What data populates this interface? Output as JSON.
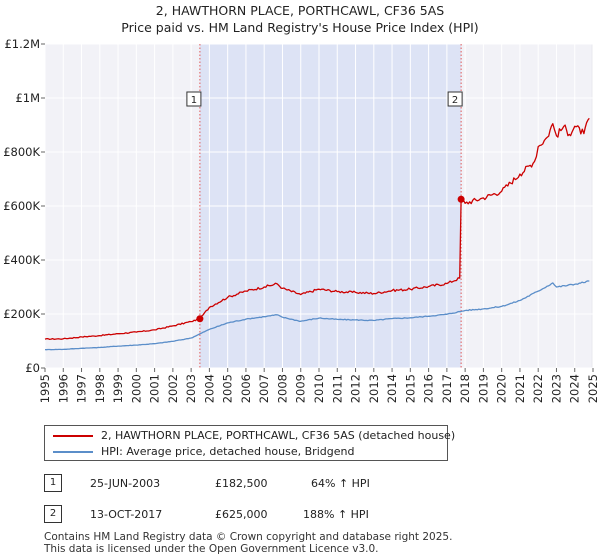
{
  "chart_data": {
    "type": "line",
    "title": "2, HAWTHORN PLACE, PORTHCAWL, CF36 5AS",
    "subtitle": "Price paid vs. HM Land Registry's House Price Index (HPI)",
    "xlabel": "",
    "ylabel": "",
    "xlim": [
      1995,
      2025
    ],
    "ylim": [
      0,
      1200000
    ],
    "y_ticks": [
      {
        "value": 0,
        "label": "£0"
      },
      {
        "value": 200000,
        "label": "£200K"
      },
      {
        "value": 400000,
        "label": "£400K"
      },
      {
        "value": 600000,
        "label": "£600K"
      },
      {
        "value": 800000,
        "label": "£800K"
      },
      {
        "value": 1000000,
        "label": "£1M"
      },
      {
        "value": 1200000,
        "label": "£1.2M"
      }
    ],
    "x_ticks": [
      "1995",
      "1996",
      "1997",
      "1998",
      "1999",
      "2000",
      "2001",
      "2002",
      "2003",
      "2004",
      "2005",
      "2006",
      "2007",
      "2008",
      "2009",
      "2010",
      "2011",
      "2012",
      "2013",
      "2014",
      "2015",
      "2016",
      "2017",
      "2018",
      "2019",
      "2020",
      "2021",
      "2022",
      "2023",
      "2024",
      "2025"
    ],
    "grid": true,
    "shaded_region": {
      "from": 2003.48,
      "to": 2017.78
    },
    "series": [
      {
        "name": "2, HAWTHORN PLACE, PORTHCAWL, CF36 5AS (detached house)",
        "color": "#cc0000",
        "x": [
          1995,
          1996,
          1997,
          1998,
          1999,
          2000,
          2001,
          2002,
          2003,
          2003.48,
          2004,
          2005,
          2006,
          2007,
          2007.7,
          2008,
          2009,
          2010,
          2011,
          2012,
          2013,
          2014,
          2015,
          2016,
          2017,
          2017.7,
          2017.78,
          2018,
          2019,
          2020,
          2021,
          2021.8,
          2022,
          2022.5,
          2022.8,
          2023,
          2023.4,
          2023.7,
          2024,
          2024.5,
          2024.8
        ],
        "values": [
          107000,
          108000,
          115000,
          120000,
          127000,
          133000,
          141000,
          156000,
          172000,
          182500,
          225000,
          262000,
          285000,
          300000,
          312000,
          295000,
          272000,
          292000,
          283000,
          280000,
          276000,
          287000,
          292000,
          302000,
          313000,
          333000,
          625000,
          610000,
          630000,
          655000,
          718000,
          765000,
          820000,
          855000,
          905000,
          860000,
          895000,
          865000,
          895000,
          868000,
          925000
        ]
      },
      {
        "name": "HPI: Average price, detached house, Bridgend",
        "color": "#5b8ec9",
        "x": [
          1995,
          1996,
          1997,
          1998,
          1999,
          2000,
          2001,
          2002,
          2003,
          2004,
          2005,
          2006,
          2007,
          2007.7,
          2008,
          2009,
          2010,
          2011,
          2012,
          2013,
          2014,
          2015,
          2016,
          2017,
          2018,
          2019,
          2020,
          2021,
          2022,
          2022.8,
          2023,
          2024,
          2024.8
        ],
        "values": [
          68000,
          69000,
          73000,
          76000,
          81000,
          85000,
          90000,
          99000,
          111000,
          143000,
          167000,
          181000,
          190000,
          197000,
          188000,
          173000,
          185000,
          180000,
          178000,
          176000,
          183000,
          186000,
          192000,
          199000,
          213000,
          219000,
          228000,
          250000,
          285000,
          315000,
          300000,
          310000,
          322000
        ]
      }
    ],
    "annotations": [
      {
        "label": "1",
        "x": 2003.48,
        "value": 182500
      },
      {
        "label": "2",
        "x": 2017.78,
        "value": 625000
      }
    ]
  },
  "sales": [
    {
      "num": "1",
      "date": "25-JUN-2003",
      "price": "£182,500",
      "hpi": "64% ↑ HPI"
    },
    {
      "num": "2",
      "date": "13-OCT-2017",
      "price": "£625,000",
      "hpi": "188% ↑ HPI"
    }
  ],
  "footer": {
    "line1": "Contains HM Land Registry data © Crown copyright and database right 2025.",
    "line2": "This data is licensed under the Open Government Licence v3.0."
  }
}
